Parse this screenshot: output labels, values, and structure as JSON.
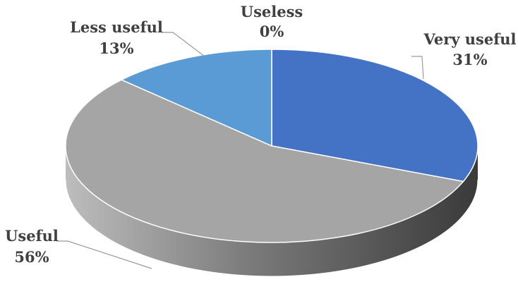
{
  "chart_data": {
    "type": "pie",
    "style": "3d",
    "categories": [
      "Very useful",
      "Useful",
      "Less useful",
      "Useless"
    ],
    "values": [
      31,
      56,
      13,
      0
    ],
    "value_labels": [
      "31%",
      "56%",
      "13%",
      "0%"
    ],
    "colors": [
      "#4472c4",
      "#a5a5a5",
      "#5b9bd5",
      "#ffc000"
    ],
    "legend": "none",
    "data_labels": "outside with leader lines"
  }
}
